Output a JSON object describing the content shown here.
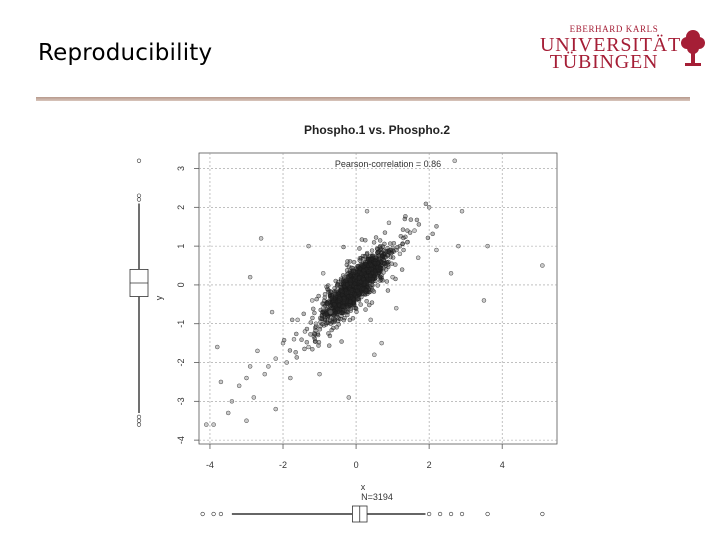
{
  "slide": {
    "title": "Reproducibility"
  },
  "logo": {
    "line1": "EBERHARD KARLS",
    "line2": "UNIVERSITÄT",
    "line3": "TÜBINGEN",
    "color": "#a51e36"
  },
  "chart_data": {
    "type": "scatter",
    "title": "Phospho.1 vs. Phospho.2",
    "xlabel": "x",
    "ylabel": "y",
    "annotation": "Pearson-correlation = 0.86",
    "n_label": "N=3194",
    "xlim": [
      -4.3,
      5.5
    ],
    "ylim": [
      -4.1,
      3.4
    ],
    "xticks": [
      -4,
      -2,
      0,
      2,
      4
    ],
    "yticks": [
      -4,
      -3,
      -2,
      -1,
      0,
      1,
      2,
      3
    ],
    "grid": true,
    "marginal_boxplots": true,
    "correlation": 0.86,
    "outlier_points": [
      [
        -4.1,
        -3.6
      ],
      [
        -3.9,
        -3.6
      ],
      [
        -3.7,
        -2.5
      ],
      [
        -3.5,
        -3.3
      ],
      [
        -3.4,
        -3.0
      ],
      [
        -3.2,
        -2.6
      ],
      [
        -3.0,
        -2.4
      ],
      [
        -3.0,
        -3.5
      ],
      [
        -2.8,
        -2.9
      ],
      [
        -2.9,
        -2.1
      ],
      [
        -2.7,
        -1.7
      ],
      [
        -2.5,
        -2.3
      ],
      [
        -2.4,
        -2.1
      ],
      [
        -2.2,
        -3.2
      ],
      [
        -2.2,
        -1.9
      ],
      [
        -2.0,
        -1.5
      ],
      [
        -1.9,
        -2.0
      ],
      [
        -1.8,
        -2.4
      ],
      [
        -1.7,
        -1.4
      ],
      [
        -1.6,
        -0.9
      ],
      [
        -1.4,
        -1.2
      ],
      [
        -1.3,
        -1.6
      ],
      [
        -1.2,
        -0.4
      ],
      [
        -1.1,
        -1.0
      ],
      [
        -0.9,
        -0.6
      ],
      [
        -0.9,
        0.3
      ],
      [
        -0.7,
        -0.7
      ],
      [
        -1.3,
        1.0
      ],
      [
        -2.9,
        0.2
      ],
      [
        -2.3,
        -0.7
      ],
      [
        -3.8,
        -1.6
      ],
      [
        0.5,
        -1.8
      ],
      [
        0.7,
        -1.5
      ],
      [
        0.4,
        -0.9
      ],
      [
        1.0,
        0.2
      ],
      [
        1.2,
        0.8
      ],
      [
        1.4,
        1.1
      ],
      [
        1.6,
        1.4
      ],
      [
        2.0,
        2.0
      ],
      [
        2.2,
        0.9
      ],
      [
        2.6,
        0.3
      ],
      [
        2.8,
        1.0
      ],
      [
        2.9,
        1.9
      ],
      [
        3.5,
        -0.4
      ],
      [
        3.6,
        1.0
      ],
      [
        5.1,
        0.5
      ],
      [
        2.7,
        3.2
      ],
      [
        1.7,
        0.7
      ],
      [
        -0.2,
        -2.9
      ],
      [
        0.3,
        1.9
      ],
      [
        -1.0,
        -2.3
      ],
      [
        -2.6,
        1.2
      ],
      [
        0.9,
        1.6
      ],
      [
        1.1,
        -0.6
      ]
    ]
  }
}
